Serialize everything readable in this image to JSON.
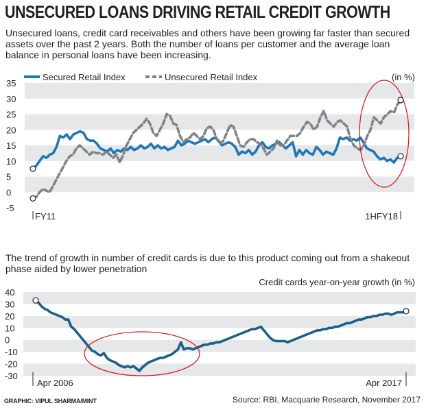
{
  "header": {
    "title": "UNSECURED LOANS DRIVING RETAIL CREDIT GROWTH",
    "subtitle": "Unsecured loans, credit card receivables and others have been growing far faster than secured assets over the past 2 years. Both the number of loans per customer and the average loan balance in personal loans have been increasing."
  },
  "chart2_intro": "The trend of growth in number of credit cards is due to this product coming out from a shakeout phase aided by lower penetration",
  "footer": {
    "credit": "GRAPHIC: VIPUL SHARMA/MINT",
    "source": "Source: RBI, Macquarie Research, November 2017"
  },
  "colors": {
    "secured": "#1f77b4",
    "unsecured": "#808285",
    "credit_cards": "#1d5f85",
    "band": "#e6e7e8",
    "highlight": "#cc2229"
  },
  "chart_data": [
    {
      "type": "line",
      "unit_label": "(in %)",
      "ylim": [
        -5,
        35
      ],
      "yticks": [
        35,
        30,
        25,
        20,
        15,
        10,
        5,
        0,
        -5
      ],
      "x_start_label": "FY11",
      "x_end_label": "1HFY18",
      "grid": "alternating bands",
      "legend_position": "top-left",
      "annotation": "red ellipse around most recent period",
      "series": [
        {
          "name": "Secured Retail Index",
          "style": "solid",
          "values": [
            7.5,
            8.5,
            10,
            11.5,
            11,
            12,
            12.5,
            14.5,
            18,
            17.5,
            18.5,
            17,
            18.5,
            19,
            19.5,
            19,
            17,
            16.5,
            16.5,
            15.5,
            14,
            13.5,
            13,
            14,
            12.5,
            13.5,
            13,
            14,
            13.5,
            14.5,
            13.5,
            14,
            15,
            14,
            14.5,
            15.5,
            14,
            15,
            14,
            14.5,
            13.5,
            14,
            14.5,
            16.5,
            15,
            15.5,
            16.5,
            16,
            15.5,
            16,
            16.5,
            17,
            16,
            17,
            17.5,
            16.5,
            15,
            15.5,
            16,
            15.5,
            14.5,
            12,
            13,
            12.5,
            13.5,
            12,
            13,
            15,
            16,
            14.5,
            14,
            15,
            15.5,
            16,
            15,
            14,
            15,
            16,
            11.5,
            13.5,
            12,
            13.5,
            12.5,
            12,
            14.5,
            13.5,
            12,
            13,
            12.5,
            12,
            14,
            17.5,
            17,
            17.5,
            16.5,
            17,
            16.5,
            17.5,
            16,
            14,
            13.5,
            13,
            11.5,
            10.5,
            11,
            10,
            10.5,
            9.5,
            11,
            11.5
          ],
          "end_value": 11.5
        },
        {
          "name": "Unsecured Retail Index",
          "style": "dashed",
          "values": [
            -2,
            -1.5,
            0,
            1,
            0.5,
            0,
            2,
            4,
            6,
            8,
            10,
            11.5,
            12,
            14,
            15,
            14,
            13,
            12,
            13,
            12.5,
            12.5,
            12,
            13,
            12,
            11,
            12,
            9.5,
            12,
            15,
            17,
            19,
            20,
            21,
            22,
            23.5,
            22,
            19,
            18,
            20,
            22,
            25,
            24.5,
            22,
            21.5,
            18,
            16,
            17,
            17.5,
            19,
            18,
            17,
            18,
            20.5,
            21,
            20,
            17,
            15.5,
            16.5,
            19,
            21.5,
            21,
            18,
            15,
            14.5,
            16,
            17,
            17,
            16,
            15.5,
            14,
            12,
            13,
            14,
            16.5,
            15,
            15,
            16.5,
            18,
            18,
            18,
            19,
            21,
            22.5,
            22,
            20,
            21,
            24,
            26,
            23,
            22,
            21,
            22.5,
            23,
            22,
            21,
            17,
            15,
            14,
            13.5,
            15,
            18,
            20,
            24,
            23,
            22,
            24,
            25,
            26,
            25.5,
            28,
            29.5
          ],
          "end_value": 29.5
        }
      ]
    },
    {
      "type": "line",
      "title": "Credit cards year-on-year growth (in %)",
      "ylim": [
        -30,
        40
      ],
      "yticks": [
        40,
        30,
        20,
        10,
        0,
        -10,
        -20,
        -30
      ],
      "x_start_label": "Apr 2006",
      "x_end_label": "Apr 2017",
      "grid": "alternating bands",
      "annotation": "red ellipse around trough period",
      "series": [
        {
          "name": "Credit cards year-on-year growth",
          "values": [
            33,
            31,
            28,
            26,
            25,
            23,
            22,
            21,
            20,
            19,
            17,
            17,
            11,
            9,
            6,
            3,
            0,
            -3,
            -6,
            -9,
            -10,
            -12,
            -13,
            -11,
            -15,
            -17,
            -18,
            -19,
            -21,
            -22,
            -23,
            -22,
            -23,
            -22,
            -24,
            -26,
            -23,
            -21,
            -19,
            -18,
            -17,
            -16,
            -15,
            -15,
            -14,
            -13,
            -12,
            -10,
            -8,
            -2,
            -8,
            -7,
            -7,
            -8,
            -7,
            -6,
            -5,
            -4,
            -4,
            -3,
            -3,
            -2,
            -2,
            -1,
            0,
            1,
            2,
            3,
            4,
            5,
            6,
            7,
            8,
            9,
            9,
            10,
            11,
            8,
            5,
            2,
            0,
            -1,
            -1,
            -1,
            -1,
            -2,
            -1,
            0,
            1,
            2,
            3,
            4,
            5,
            6,
            7,
            8,
            8,
            9,
            9,
            10,
            10,
            11,
            11,
            12,
            13,
            14,
            14,
            15,
            16,
            17,
            17,
            18,
            19,
            19,
            20,
            20,
            21,
            21,
            22,
            22,
            21,
            22,
            23,
            23,
            23,
            24
          ],
          "start_value": 33,
          "end_value": 24
        }
      ]
    }
  ]
}
